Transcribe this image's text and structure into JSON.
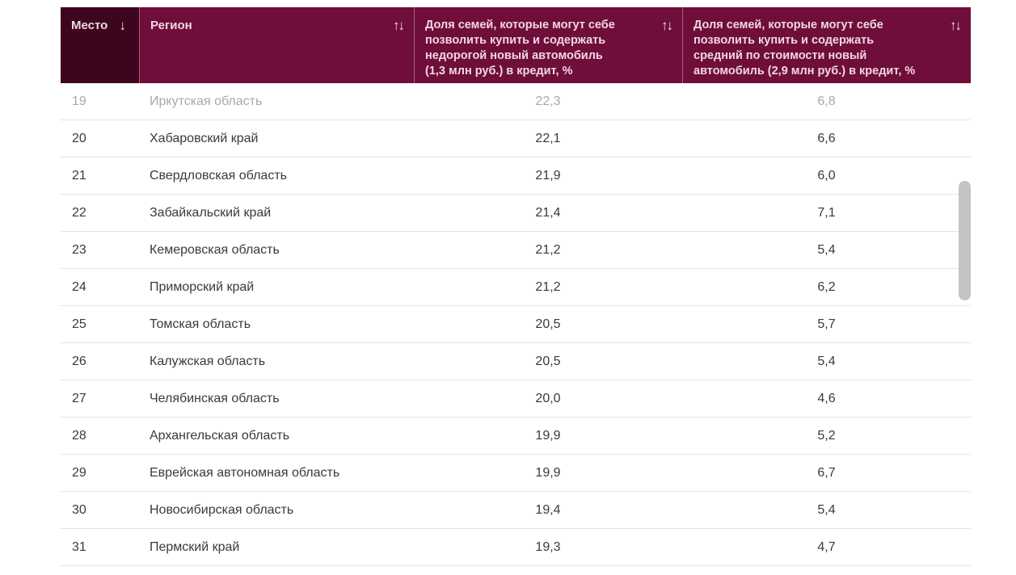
{
  "colors": {
    "header_dark": "#3e051e",
    "header_light": "#6f0e3a",
    "header_text": "#f0d7e3",
    "row_text": "#3a3a3a",
    "faded_row_text": "#a8a8a8",
    "row_border": "#e3e3e3",
    "scrollbar_thumb": "#c4c4c4"
  },
  "table": {
    "columns": [
      {
        "label": "Место",
        "sort": "↓"
      },
      {
        "label": "Регион",
        "sort": "↑↓"
      },
      {
        "label": "Доля семей, которые могут себе позволить купить и содержать недорогой новый автомобиль (1,3 млн руб.) в кредит, %",
        "sort": "↑↓"
      },
      {
        "label": "Доля семей, которые могут себе позволить купить и содержать средний по стоимости новый автомобиль (2,9 млн руб.) в кредит, %",
        "sort": "↑↓"
      }
    ],
    "rows": [
      {
        "rank": "19",
        "region": "Иркутская область",
        "cheap": "22,3",
        "mid": "6,8"
      },
      {
        "rank": "20",
        "region": "Хабаровский край",
        "cheap": "22,1",
        "mid": "6,6"
      },
      {
        "rank": "21",
        "region": "Свердловская область",
        "cheap": "21,9",
        "mid": "6,0"
      },
      {
        "rank": "22",
        "region": "Забайкальский край",
        "cheap": "21,4",
        "mid": "7,1"
      },
      {
        "rank": "23",
        "region": "Кемеровская область",
        "cheap": "21,2",
        "mid": "5,4"
      },
      {
        "rank": "24",
        "region": "Приморский край",
        "cheap": "21,2",
        "mid": "6,2"
      },
      {
        "rank": "25",
        "region": "Томская область",
        "cheap": "20,5",
        "mid": "5,7"
      },
      {
        "rank": "26",
        "region": "Калужская область",
        "cheap": "20,5",
        "mid": "5,4"
      },
      {
        "rank": "27",
        "region": "Челябинская область",
        "cheap": "20,0",
        "mid": "4,6"
      },
      {
        "rank": "28",
        "region": "Архангельская область",
        "cheap": "19,9",
        "mid": "5,2"
      },
      {
        "rank": "29",
        "region": "Еврейская автономная область",
        "cheap": "19,9",
        "mid": "6,7"
      },
      {
        "rank": "30",
        "region": "Новосибирская область",
        "cheap": "19,4",
        "mid": "5,4"
      },
      {
        "rank": "31",
        "region": "Пермский край",
        "cheap": "19,3",
        "mid": "4,7"
      }
    ]
  }
}
